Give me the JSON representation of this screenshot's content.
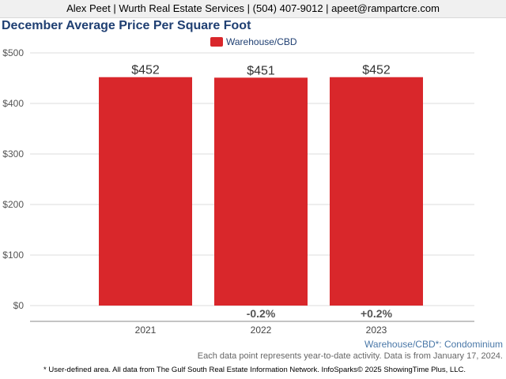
{
  "header": {
    "agent_line": "Alex Peet | Wurth Real Estate Services | (504) 407-9012 | apeet@rampartcre.com"
  },
  "chart_data": {
    "type": "bar",
    "title": "December Average Price Per Square Foot",
    "xlabel": "",
    "ylabel": "",
    "categories": [
      "2021",
      "2022",
      "2023"
    ],
    "series": [
      {
        "name": "Warehouse/CBD",
        "color": "#d9272b",
        "values": [
          452,
          451,
          452
        ],
        "value_labels": [
          "$452",
          "$451",
          "$452"
        ]
      }
    ],
    "change_labels": [
      "",
      "-0.2%",
      "+0.2%"
    ],
    "ylim": [
      0,
      500
    ],
    "yticks": [
      0,
      100,
      200,
      300,
      400,
      500
    ],
    "ytick_labels": [
      "$0",
      "$100",
      "$200",
      "$300",
      "$400",
      "$500"
    ],
    "grid": true,
    "legend_position": "top-center"
  },
  "footer": {
    "area_note": "Warehouse/CBD*: Condominium",
    "activity_note": "Each data point represents year-to-date activity. Data is from January 17, 2024.",
    "source_note": "* User-defined area. All data from The Gulf South Real Estate Information Network. InfoSparks© 2025 ShowingTime Plus, LLC."
  },
  "colors": {
    "title": "#1f3f72",
    "bar": "#d9272b",
    "change_label": "#555555",
    "area_note": "#4a78a8"
  }
}
